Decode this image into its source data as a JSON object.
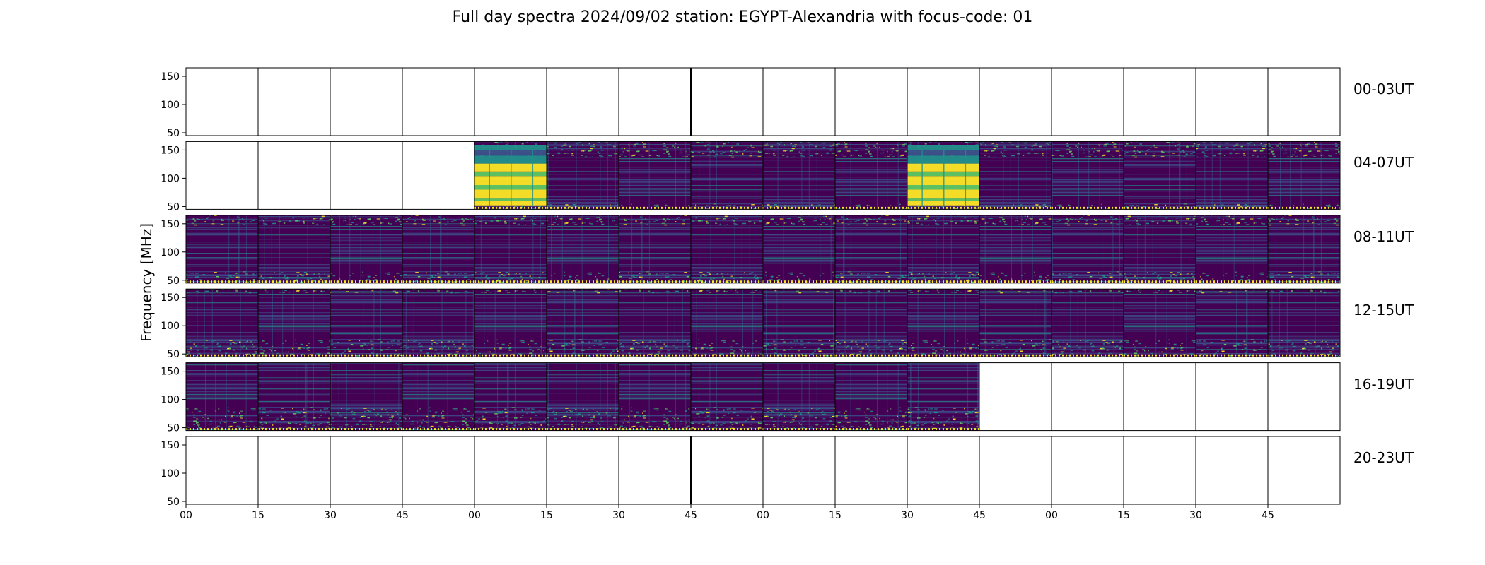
{
  "chart_data": {
    "type": "heatmap",
    "title": "Full day spectra 2024/09/02 station: EGYPT-Alexandria with focus-code: 01",
    "ylabel": "Frequency [MHz]",
    "xlabel": "",
    "ylim": [
      45,
      165
    ],
    "y_ticks": [
      "50",
      "100",
      "150"
    ],
    "x_tick_labels": [
      "00",
      "15",
      "30",
      "45",
      "00",
      "15",
      "30",
      "45",
      "00",
      "15",
      "30",
      "45",
      "00",
      "15",
      "30",
      "45"
    ],
    "colormap": "viridis",
    "colors": {
      "low": "#440154",
      "mid": "#21918c",
      "high": "#fde725"
    },
    "rows": [
      {
        "label": "00-03UT",
        "panels": [
          "empty",
          "empty",
          "empty",
          "empty",
          "empty",
          "empty",
          "empty",
          "empty",
          "empty",
          "empty",
          "empty",
          "empty",
          "empty",
          "empty",
          "empty",
          "empty"
        ]
      },
      {
        "label": "04-07UT",
        "panels": [
          "empty",
          "empty",
          "empty",
          "empty",
          "bright",
          "data",
          "data",
          "data",
          "data",
          "data",
          "bright",
          "data",
          "data",
          "data",
          "data",
          "data"
        ]
      },
      {
        "label": "08-11UT",
        "panels": [
          "data",
          "data",
          "data",
          "data",
          "data",
          "data",
          "data",
          "data",
          "data",
          "data",
          "data",
          "data",
          "data",
          "data",
          "data",
          "data"
        ]
      },
      {
        "label": "12-15UT",
        "panels": [
          "data",
          "data",
          "data",
          "data",
          "data",
          "data",
          "data",
          "data",
          "data",
          "data",
          "data",
          "data",
          "data",
          "data",
          "data",
          "data"
        ]
      },
      {
        "label": "16-19UT",
        "panels": [
          "data",
          "data",
          "data",
          "data",
          "data",
          "data",
          "data",
          "data",
          "data",
          "data",
          "data",
          "empty",
          "empty",
          "empty",
          "empty",
          "empty"
        ]
      },
      {
        "label": "20-23UT",
        "panels": [
          "empty",
          "empty",
          "empty",
          "empty",
          "empty",
          "empty",
          "empty",
          "empty",
          "empty",
          "empty",
          "empty",
          "empty",
          "empty",
          "empty",
          "empty",
          "empty"
        ]
      }
    ]
  }
}
